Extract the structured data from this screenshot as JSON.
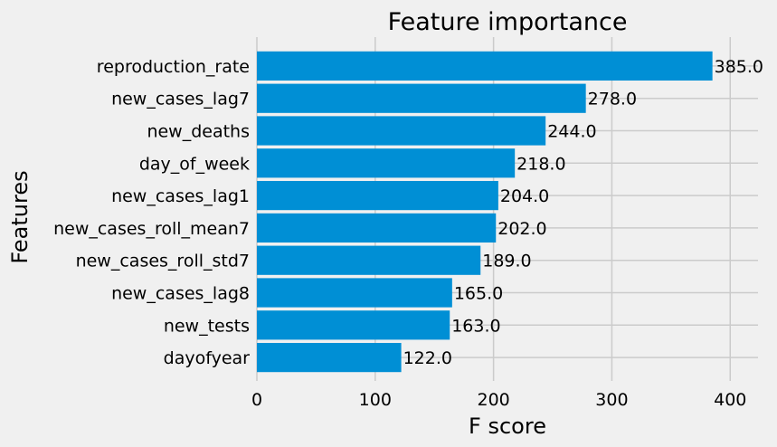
{
  "chart_data": {
    "type": "bar",
    "orientation": "horizontal",
    "title": "Feature importance",
    "xlabel": "F score",
    "ylabel": "Features",
    "categories": [
      "reproduction_rate",
      "new_cases_lag7",
      "new_deaths",
      "day_of_week",
      "new_cases_lag1",
      "new_cases_roll_mean7",
      "new_cases_roll_std7",
      "new_cases_lag8",
      "new_tests",
      "dayofyear"
    ],
    "values": [
      385,
      278,
      244,
      218,
      204,
      202,
      189,
      165,
      163,
      122
    ],
    "value_labels": [
      "385.0",
      "278.0",
      "244.0",
      "218.0",
      "204.0",
      "202.0",
      "189.0",
      "165.0",
      "163.0",
      "122.0"
    ],
    "xticks": [
      0,
      100,
      200,
      300,
      400
    ],
    "xlim": [
      0,
      423.5
    ],
    "grid": true,
    "bar_color": "#008fd5",
    "background_color": "#f0f0f0",
    "grid_color": "#cbcbcb"
  }
}
